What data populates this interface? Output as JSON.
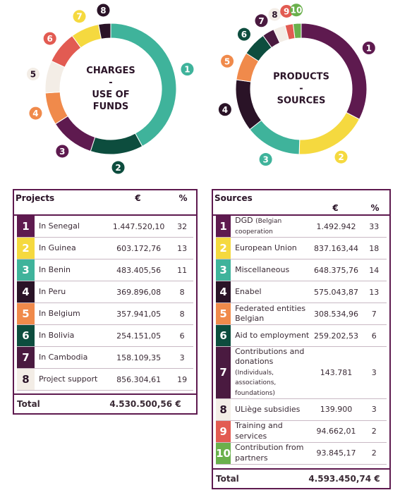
{
  "chart_data": [
    {
      "type": "donut",
      "title_lines": [
        "CHARGES",
        "-",
        "USE OF",
        "FUNDS"
      ],
      "categories": [
        "1",
        "2",
        "3",
        "4",
        "5",
        "6",
        "7",
        "8"
      ],
      "values": [
        42,
        13,
        11,
        8,
        8,
        8,
        7,
        3
      ],
      "colors": [
        "#3fb39b",
        "#0d4d3e",
        "#5e1a4f",
        "#f08a4b",
        "#f3ede6",
        "#e25b52",
        "#f5d93f",
        "#2a1327"
      ]
    },
    {
      "type": "donut",
      "title_lines": [
        "PRODUCTS",
        "-",
        "SOURCES"
      ],
      "categories": [
        "1",
        "2",
        "3",
        "4",
        "5",
        "6",
        "7",
        "8",
        "9",
        "10"
      ],
      "values": [
        33,
        18,
        14,
        13,
        7,
        6,
        3,
        3,
        2,
        2
      ],
      "colors": [
        "#5e1a4f",
        "#f5d93f",
        "#3fb39b",
        "#2a1327",
        "#f08a4b",
        "#0d4d3e",
        "#4a1a40",
        "#f3ede6",
        "#e25b52",
        "#6ab04c"
      ]
    }
  ],
  "tables": [
    {
      "header": [
        "Projects",
        "€",
        "%"
      ],
      "rows": [
        {
          "number": "1",
          "color": "#5e1a4f",
          "label": "In Senegal",
          "amount": "1.447.520,10",
          "percent": "32"
        },
        {
          "number": "2",
          "color": "#f5d93f",
          "label": "In Guinea",
          "amount": "603.172,76",
          "percent": "13"
        },
        {
          "number": "3",
          "color": "#3fb39b",
          "label": "In Benin",
          "amount": "483.405,56",
          "percent": "11"
        },
        {
          "number": "4",
          "color": "#2a1327",
          "label": "In Peru",
          "amount": "369.896,08",
          "percent": "8"
        },
        {
          "number": "5",
          "color": "#f08a4b",
          "label": "In Belgium",
          "amount": "357.941,05",
          "percent": "8"
        },
        {
          "number": "6",
          "color": "#0d4d3e",
          "label": "In Bolivia",
          "amount": "254.151,05",
          "percent": "6"
        },
        {
          "number": "7",
          "color": "#4a1a40",
          "label": "In Cambodia",
          "amount": "158.109,35",
          "percent": "3"
        },
        {
          "number": "8",
          "color": "#f3ede6",
          "label": "Project support",
          "amount": "856.304,61",
          "percent": "19"
        }
      ],
      "total_label": "Total",
      "total": "4.530.500,56 €"
    },
    {
      "header": [
        "Sources",
        "€",
        "%"
      ],
      "rows": [
        {
          "number": "1",
          "color": "#5e1a4f",
          "label": "DGD",
          "note": "(Belgian cooperation",
          "amount": "1.492.942",
          "percent": "33"
        },
        {
          "number": "2",
          "color": "#f5d93f",
          "label": "European Union",
          "amount": "837.163,44",
          "percent": "18"
        },
        {
          "number": "3",
          "color": "#3fb39b",
          "label": "Miscellaneous",
          "amount": "648.375,76",
          "percent": "14"
        },
        {
          "number": "4",
          "color": "#2a1327",
          "label": "Enabel",
          "amount": "575.043,87",
          "percent": "13"
        },
        {
          "number": "5",
          "color": "#f08a4b",
          "label": "Federated entities Belgian",
          "amount": "308.534,96",
          "percent": "7"
        },
        {
          "number": "6",
          "color": "#0d4d3e",
          "label": "Aid to employment",
          "amount": "259.202,53",
          "percent": "6"
        },
        {
          "number": "7",
          "color": "#4a1a40",
          "label": "Contributions and donations",
          "note": "(Individuals, associations, foundations)",
          "amount": "143.781",
          "percent": "3"
        },
        {
          "number": "8",
          "color": "#f3ede6",
          "label": "ULiège subsidies",
          "amount": "139.900",
          "percent": "3"
        },
        {
          "number": "9",
          "color": "#e25b52",
          "label": "Training and services",
          "amount": "94.662,01",
          "percent": "2"
        },
        {
          "number": "10",
          "color": "#6ab04c",
          "label": "Contribution from partners",
          "amount": "93.845,17",
          "percent": "2"
        }
      ],
      "total_label": "Total",
      "total": "4.593.450,74 €"
    }
  ]
}
